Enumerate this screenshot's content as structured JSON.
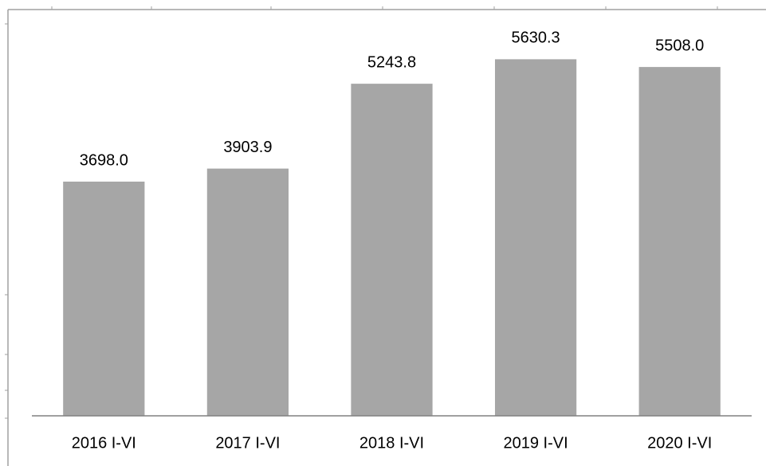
{
  "chart_data": {
    "type": "bar",
    "categories": [
      "2016 I-VI",
      "2017 I-VI",
      "2018 I-VI",
      "2019 I-VI",
      "2020 I-VI"
    ],
    "values": [
      3698.0,
      3903.9,
      5243.8,
      5630.3,
      5508.0
    ],
    "value_labels": [
      "3698.0",
      "3903.9",
      "5243.8",
      "5630.3",
      "5508.0"
    ],
    "color": "#a6a6a6",
    "ylim": [
      0,
      6415
    ]
  }
}
